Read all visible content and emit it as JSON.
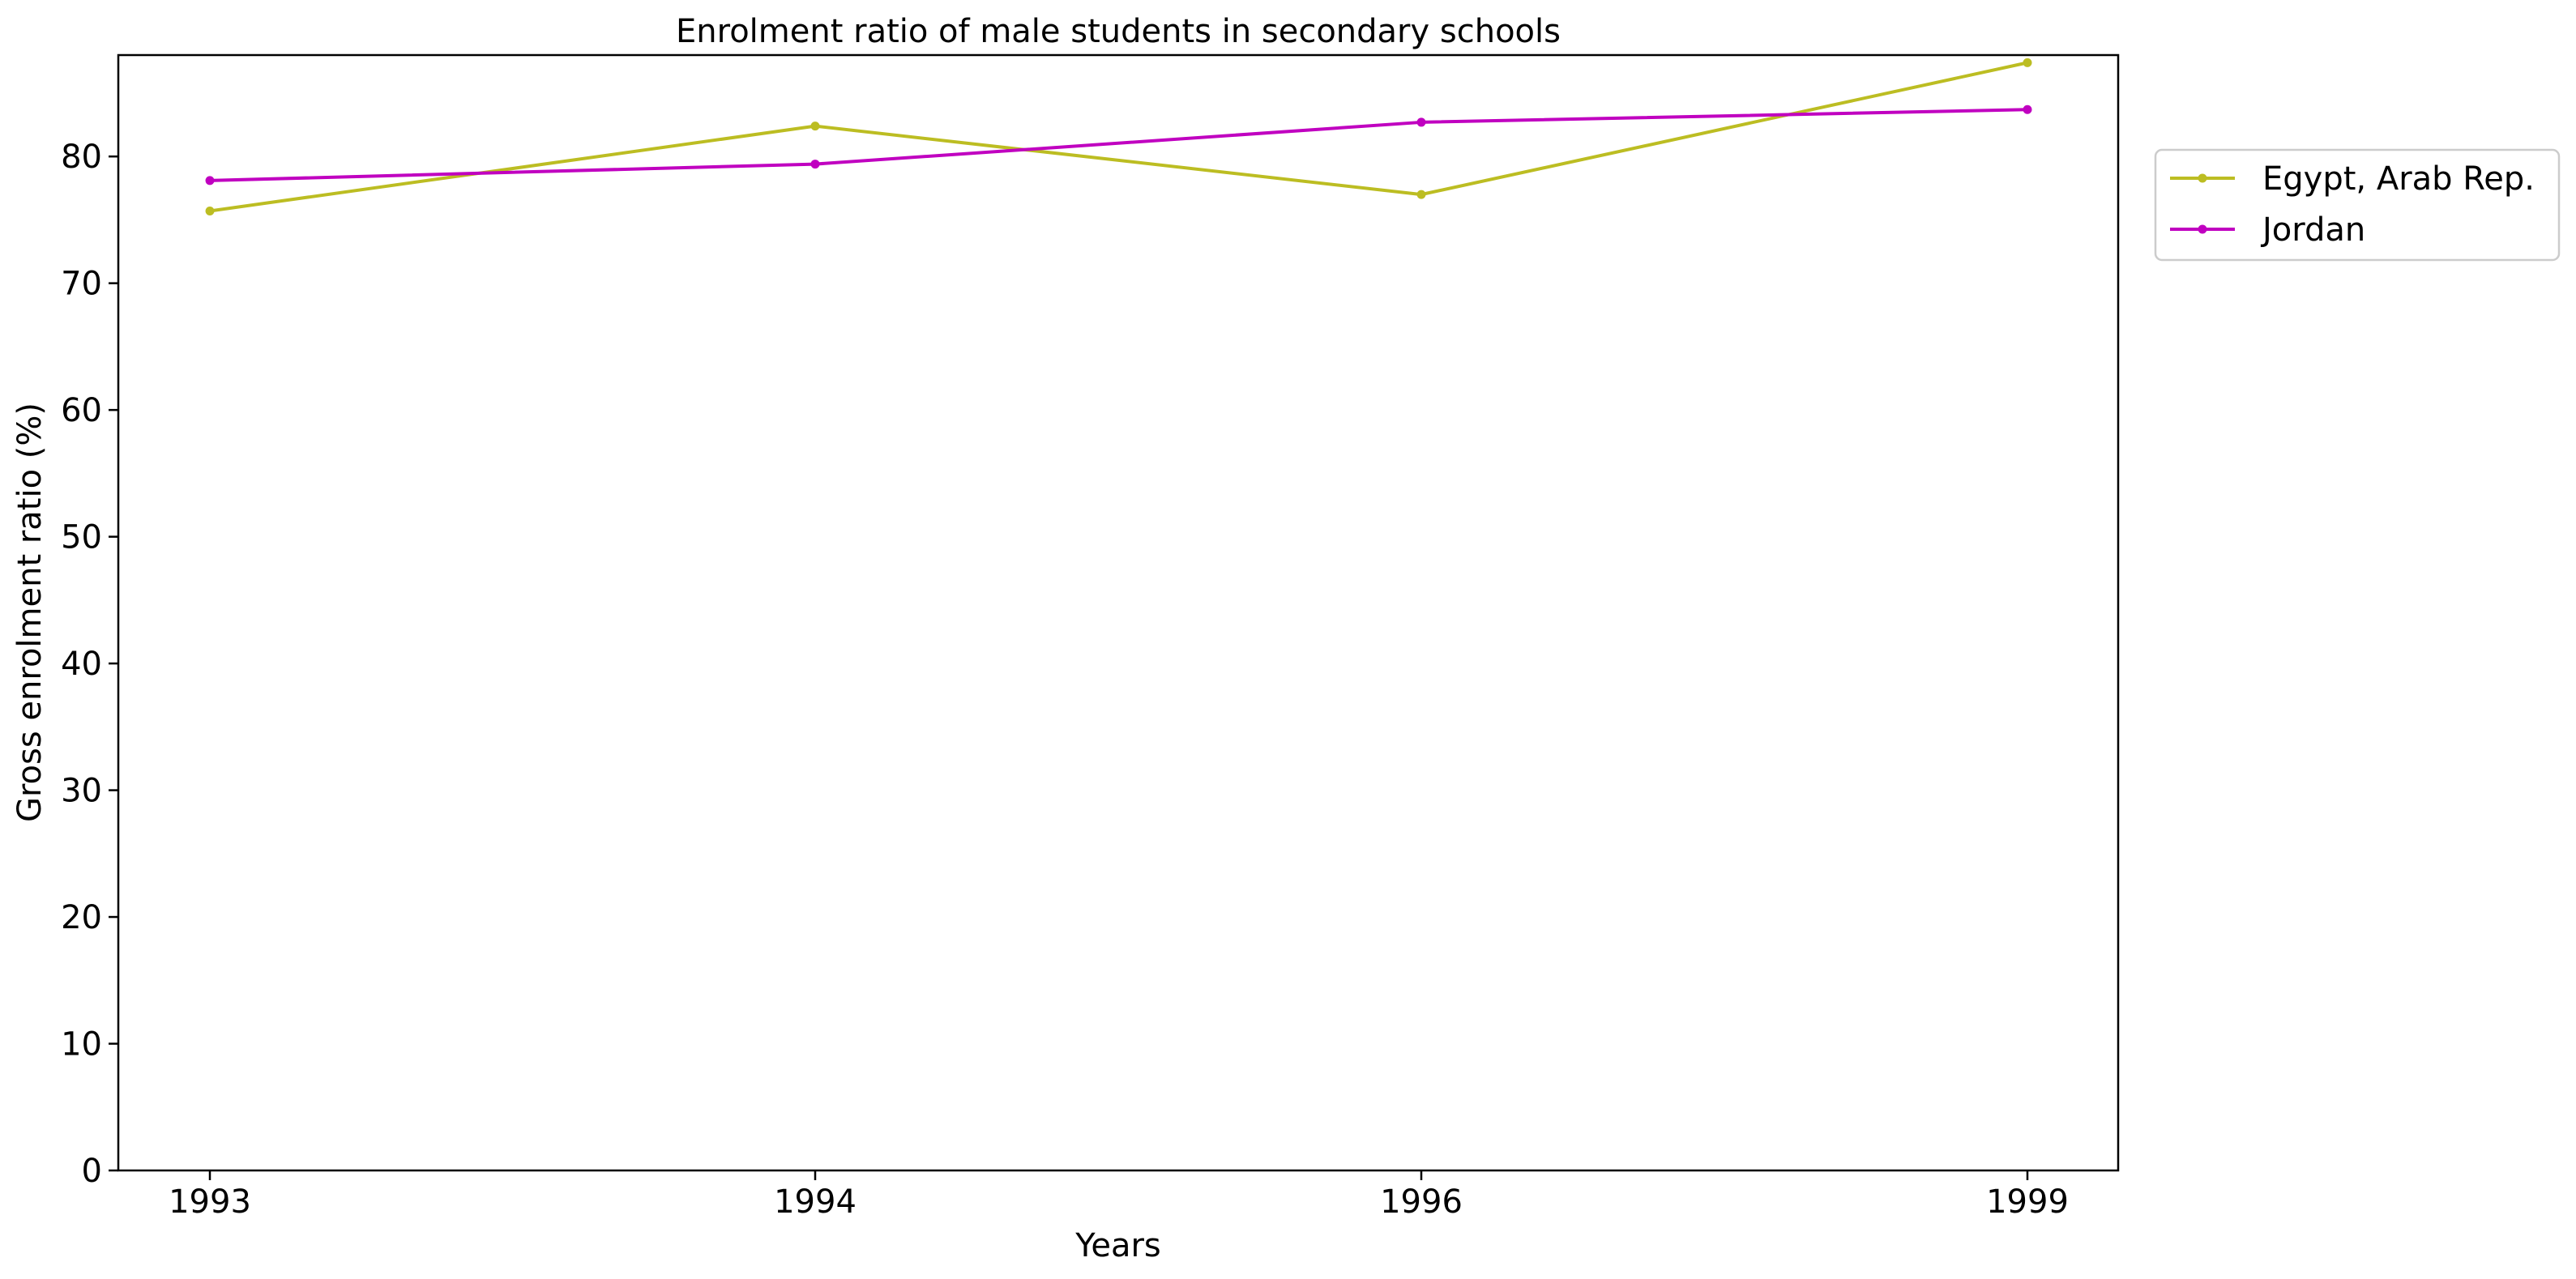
{
  "chart_data": {
    "type": "line",
    "title": "Enrolment ratio of male students in secondary schools",
    "xlabel": "Years",
    "ylabel": "Gross enrolment ratio (%)",
    "categories": [
      "1993",
      "1994",
      "1996",
      "1999"
    ],
    "ylim": [
      0,
      88
    ],
    "yticks": [
      0,
      10,
      20,
      30,
      40,
      50,
      60,
      70,
      80
    ],
    "grid": false,
    "legend_position": "outside-right-top",
    "series": [
      {
        "name": "Egypt, Arab Rep.",
        "color": "#bcbd22",
        "values": [
          75.7,
          82.4,
          77.0,
          87.4
        ]
      },
      {
        "name": "Jordan",
        "color": "#c000c0",
        "values": [
          78.1,
          79.4,
          82.7,
          83.7
        ]
      }
    ]
  }
}
